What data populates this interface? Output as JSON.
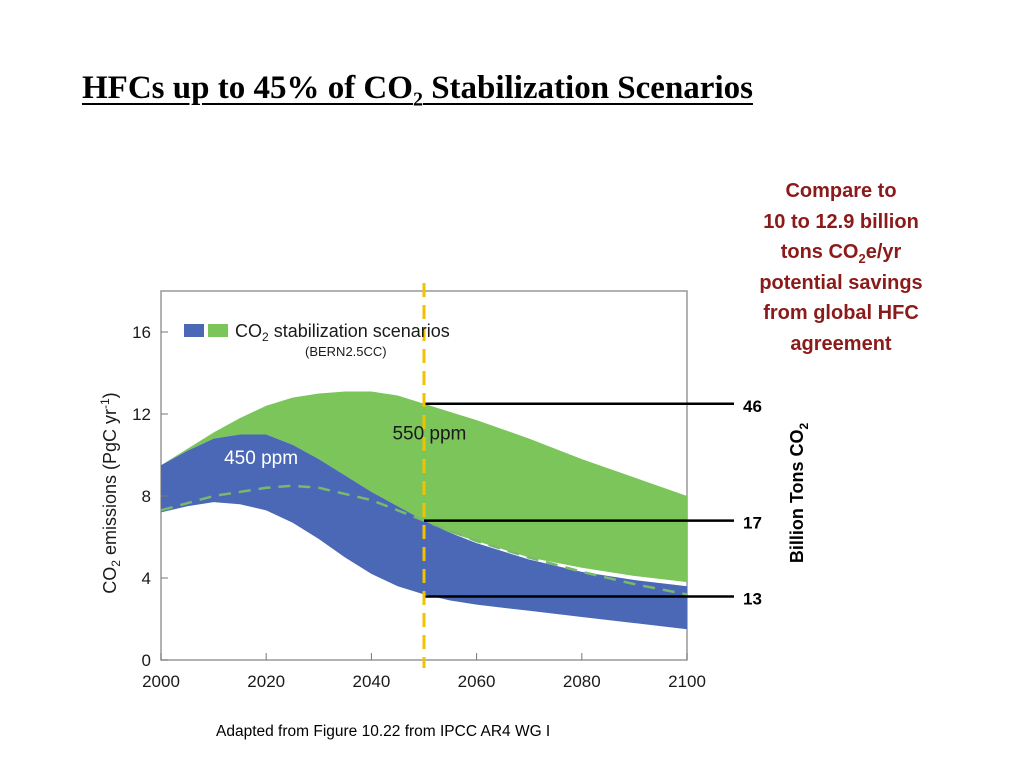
{
  "slide": {
    "title_main": "HFCs up to 45% of CO",
    "title_sub": "2",
    "title_rest": " Stabilization Scenarios",
    "caption": "Adapted from Figure 10.22 from IPCC AR4 WG I"
  },
  "callout": {
    "line1": "Compare to",
    "line2": "10 to 12.9 billion",
    "line3a": "tons CO",
    "line3sub": "2",
    "line3b": "e/yr",
    "line4": "potential savings",
    "line5": "from global HFC",
    "line6": "agreement"
  },
  "colors": {
    "band_450": "#4a68b5",
    "band_550": "#7cc55a",
    "dashed_line": "#7ab86e",
    "marker_line": "#f2c200",
    "callout_text": "#8B1A1A"
  },
  "chart_data": {
    "type": "area",
    "xlim": [
      2000,
      2100
    ],
    "ylim": [
      0,
      18
    ],
    "x_ticks": [
      "2000",
      "2020",
      "2040",
      "2060",
      "2080",
      "2100"
    ],
    "y_ticks": [
      "0",
      "4",
      "8",
      "12",
      "16"
    ],
    "ylabel_main": "CO",
    "ylabel_sub": "2",
    "ylabel_rest": " emissions (PgC yr",
    "ylabel_sup": "-1",
    "ylabel_end": ")",
    "legend_main": "CO",
    "legend_sub": "2",
    "legend_rest": " stabilization scenarios",
    "legend_note": "(BERN2.5CC)",
    "legend_position": "top-left",
    "grid": false,
    "series": [
      {
        "name": "450 ppm",
        "x": [
          2000,
          2005,
          2010,
          2015,
          2020,
          2025,
          2030,
          2035,
          2040,
          2045,
          2050,
          2055,
          2060,
          2070,
          2080,
          2090,
          2100
        ],
        "upper": [
          9.5,
          10.2,
          10.8,
          11.0,
          11.0,
          10.5,
          9.8,
          9.0,
          8.2,
          7.5,
          6.8,
          6.2,
          5.7,
          4.9,
          4.3,
          3.9,
          3.6
        ],
        "lower": [
          7.2,
          7.5,
          7.7,
          7.6,
          7.3,
          6.7,
          5.9,
          5.0,
          4.2,
          3.6,
          3.2,
          2.9,
          2.7,
          2.4,
          2.1,
          1.8,
          1.5
        ]
      },
      {
        "name": "550 ppm",
        "x": [
          2000,
          2005,
          2010,
          2015,
          2020,
          2025,
          2030,
          2035,
          2040,
          2045,
          2050,
          2055,
          2060,
          2070,
          2080,
          2090,
          2100
        ],
        "upper": [
          9.5,
          10.3,
          11.1,
          11.8,
          12.4,
          12.8,
          13.0,
          13.1,
          13.1,
          12.9,
          12.5,
          12.1,
          11.7,
          10.8,
          9.8,
          8.9,
          8.0
        ],
        "lower": [
          9.5,
          10.2,
          10.8,
          11.0,
          11.0,
          10.5,
          9.8,
          9.0,
          8.2,
          7.5,
          6.8,
          6.2,
          5.8,
          5.0,
          4.5,
          4.1,
          3.8
        ]
      }
    ],
    "dashed_line": {
      "x": [
        2000,
        2010,
        2020,
        2025,
        2030,
        2040,
        2050,
        2060,
        2070,
        2080,
        2090,
        2100
      ],
      "y": [
        7.3,
        8.0,
        8.4,
        8.5,
        8.4,
        7.8,
        6.8,
        5.8,
        5.0,
        4.3,
        3.7,
        3.2
      ]
    },
    "vertical_marker_x": 2050,
    "markers": [
      {
        "label": "46",
        "y": 12.5
      },
      {
        "label": "17",
        "y": 6.8
      },
      {
        "label": "13",
        "y": 3.1
      }
    ],
    "right_axis_label_main": "Billion Tons CO",
    "right_axis_label_sub": "2"
  }
}
